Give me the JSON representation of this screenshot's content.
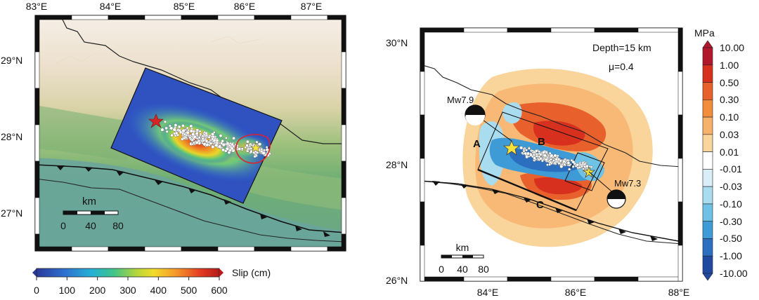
{
  "left_map": {
    "lon_ticks": [
      "83°E",
      "84°E",
      "85°E",
      "86°E",
      "87°E"
    ],
    "lat_ticks": [
      "29°N",
      "28°N",
      "27°N"
    ],
    "scale_bar": {
      "title": "km",
      "ticks": [
        "0",
        "40",
        "80"
      ]
    },
    "colorbar": {
      "ticks": [
        "0",
        "100",
        "200",
        "300",
        "400",
        "500",
        "600"
      ],
      "label": "Slip (cm)",
      "range": [
        0,
        600
      ],
      "colors": [
        "#2a3a9a",
        "#2f6fd0",
        "#25b0d6",
        "#3fc48a",
        "#b6d63a",
        "#f2dc2a",
        "#f59a2a",
        "#e23a22",
        "#b51a1a"
      ]
    }
  },
  "right_map": {
    "lon_ticks": [
      "84°E",
      "86°E",
      "88°E"
    ],
    "lat_ticks": [
      "30°N",
      "28°N",
      "26°N"
    ],
    "depth_label": "Depth=15 km",
    "mu_label": "μ=0.4",
    "event_labels": [
      "Mw7.9",
      "Mw7.3"
    ],
    "segment_labels": [
      "A",
      "B",
      "C"
    ],
    "scale_bar": {
      "title": "km",
      "ticks": [
        "0",
        "40",
        "80"
      ]
    },
    "colorbar": {
      "unit": "MPa",
      "ticks": [
        "10.00",
        "1.00",
        "0.50",
        "0.30",
        "0.10",
        "0.03",
        "0.01",
        "-0.01",
        "-0.03",
        "-0.10",
        "-0.30",
        "-0.50",
        "-1.00",
        "-10.00"
      ],
      "colors": [
        "#b2182b",
        "#d7301f",
        "#e8612c",
        "#f28e3b",
        "#f6b26b",
        "#f9d49b",
        "#ffffff",
        "#d9eef6",
        "#a9dcef",
        "#6fc2e6",
        "#3f9bd6",
        "#2b6fbe",
        "#1f4aa0"
      ]
    }
  }
}
